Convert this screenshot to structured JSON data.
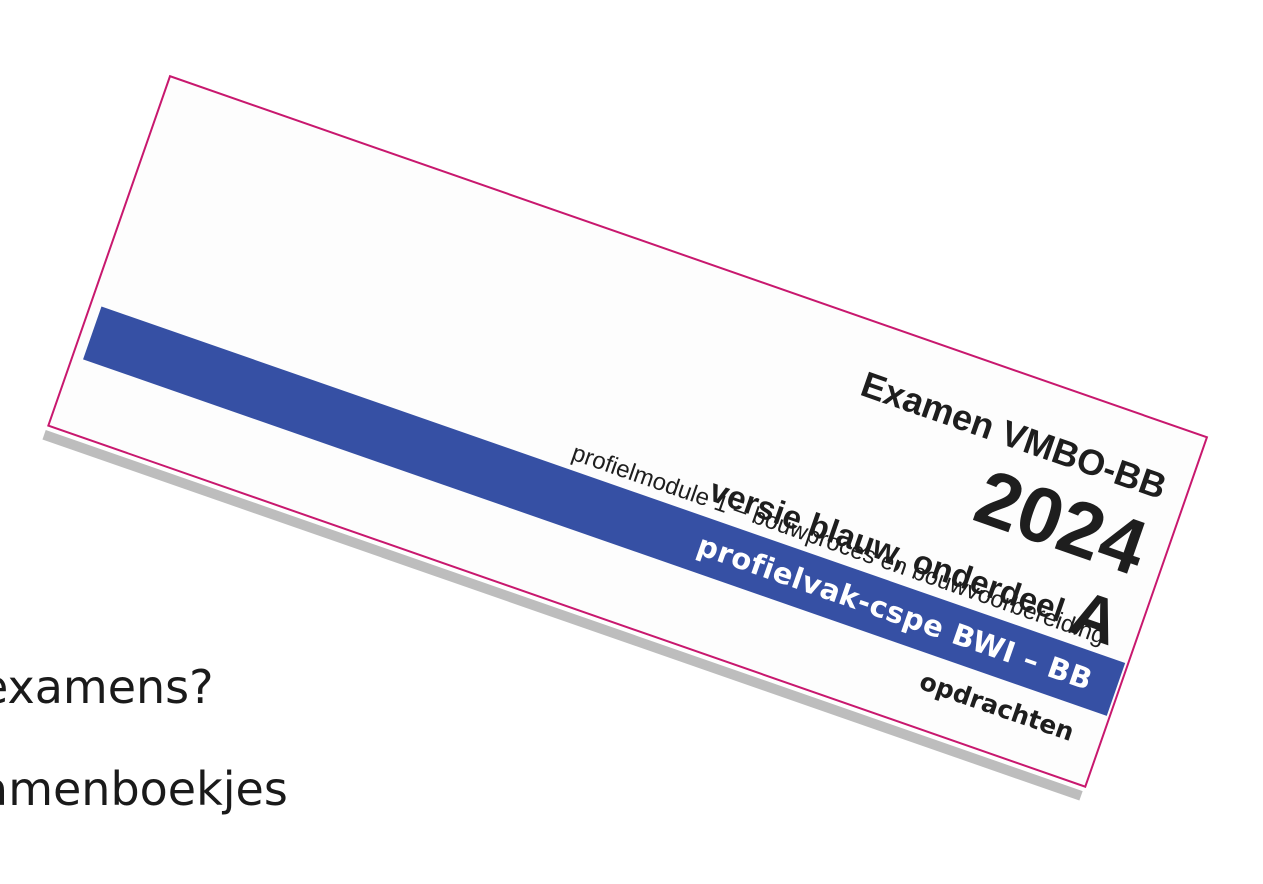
{
  "slide": {
    "line1": "examens?",
    "line2": "amenboekjes"
  },
  "cover": {
    "exam_title": "Examen VMBO-BB",
    "year": "2024",
    "version_text": "versie blauw, onderdeel",
    "version_letter": "A",
    "module": "profielmodule 1 – bouwproces en bouwvoorbereiding",
    "subject": "profielvak-cspe BWI – BB",
    "booklet_type": "opdrachten"
  },
  "colors": {
    "band": "#3650a4",
    "border": "#c8186e",
    "shadow": "#bdbdbd"
  }
}
